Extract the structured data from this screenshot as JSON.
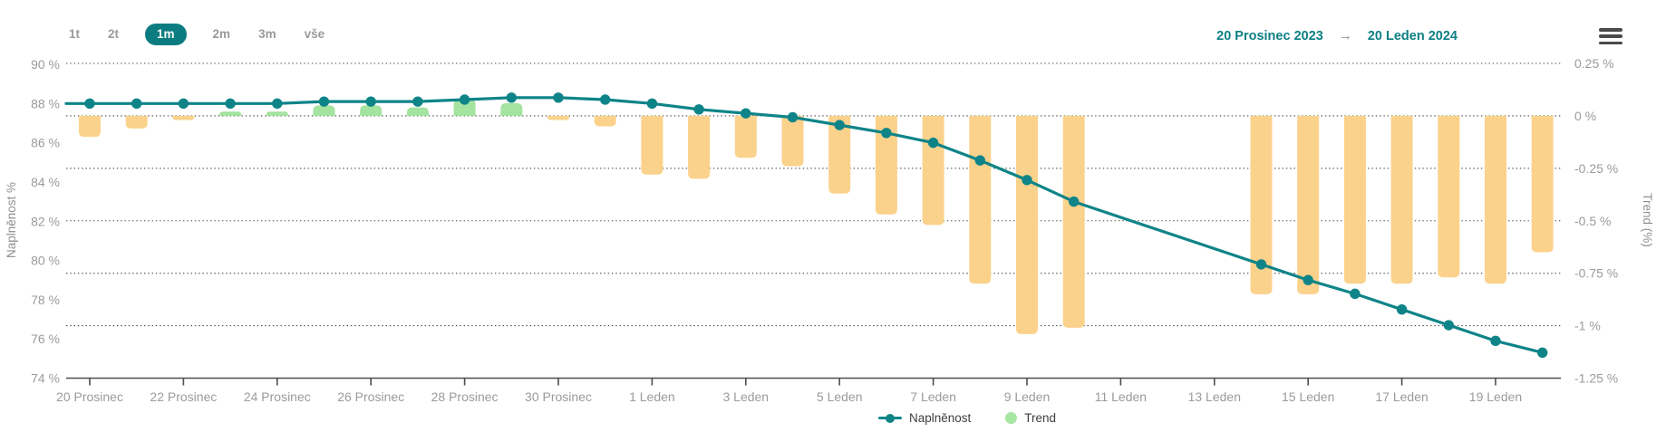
{
  "header": {
    "ranges": {
      "options": [
        "1t",
        "2t",
        "1m",
        "2m",
        "3m",
        "vše"
      ],
      "selected": "1m"
    },
    "date_range": {
      "from": "20 Prosinec 2023",
      "arrow": "→",
      "to": "20 Leden 2024"
    },
    "menu_icon": "hamburger-menu-icon"
  },
  "legend": {
    "items": [
      {
        "label": "Naplněnost",
        "marker": "line-dot",
        "color": "#0E8488"
      },
      {
        "label": "Trend",
        "marker": "circle",
        "color": "#A7E6A3"
      }
    ]
  },
  "colors": {
    "line_teal": "#0E8488",
    "pill_teal": "#0B7C80",
    "date_teal": "#0C7F83",
    "bar_negative_orange": "#FBD28C",
    "bar_positive_green": "#A4E3A0",
    "legend_green": "#A7E6A3",
    "axis_text_gray": "#9B9B9B",
    "axis_title_gray": "#8F8F8F",
    "grid_dot": "#484848",
    "axis_line": "#4D4D4D",
    "legend_text": "#3D3D3D"
  },
  "chart_data": {
    "type": "line+bar",
    "title": "",
    "grid": "dotted horizontal, aligned to right axis",
    "legend_position": "bottom",
    "categories": [
      "20 Prosinec",
      "21 Prosinec",
      "22 Prosinec",
      "23 Prosinec",
      "24 Prosinec",
      "25 Prosinec",
      "26 Prosinec",
      "27 Prosinec",
      "28 Prosinec",
      "29 Prosinec",
      "30 Prosinec",
      "31 Prosinec",
      "1 Leden",
      "2 Leden",
      "3 Leden",
      "4 Leden",
      "5 Leden",
      "6 Leden",
      "7 Leden",
      "8 Leden",
      "9 Leden",
      "10 Leden",
      "11 Leden",
      "12 Leden",
      "13 Leden",
      "14 Leden",
      "15 Leden",
      "16 Leden",
      "17 Leden",
      "18 Leden",
      "19 Leden",
      "20 Leden"
    ],
    "series": [
      {
        "name": "Naplněnost",
        "type": "line",
        "axis": "left",
        "unit": "%",
        "values": [
          88.0,
          88.0,
          88.0,
          88.0,
          88.0,
          88.1,
          88.1,
          88.1,
          88.2,
          88.3,
          88.3,
          88.2,
          88.0,
          87.7,
          87.5,
          87.3,
          86.9,
          86.5,
          86.0,
          85.1,
          84.1,
          83.0,
          null,
          null,
          null,
          79.8,
          79.0,
          78.3,
          77.5,
          76.7,
          75.9,
          75.3
        ]
      },
      {
        "name": "Trend",
        "type": "bar",
        "axis": "right",
        "unit": "%",
        "values": [
          -0.1,
          -0.06,
          -0.02,
          0.02,
          0.02,
          0.05,
          0.05,
          0.04,
          0.08,
          0.06,
          -0.02,
          -0.05,
          -0.28,
          -0.3,
          -0.2,
          -0.24,
          -0.37,
          -0.47,
          -0.52,
          -0.8,
          -1.04,
          -1.01,
          null,
          null,
          null,
          -0.85,
          -0.85,
          -0.8,
          -0.8,
          -0.77,
          -0.8,
          -0.65
        ]
      }
    ],
    "left_axis": {
      "title": "Naplněnost %",
      "min": 74,
      "max": 90,
      "tick_values": [
        90,
        88,
        86,
        84,
        82,
        80,
        78,
        76,
        74
      ],
      "tick_labels": [
        "90 %",
        "88 %",
        "86 %",
        "84 %",
        "82 %",
        "80 %",
        "78 %",
        "76 %",
        "74 %"
      ]
    },
    "right_axis": {
      "title": "Trend (%)",
      "min": -1.25,
      "max": 0.25,
      "tick_values": [
        0.25,
        0,
        -0.25,
        -0.5,
        -0.75,
        -1,
        -1.25
      ],
      "tick_labels": [
        "0.25 %",
        "0 %",
        "-0.25 %",
        "-0.5 %",
        "-0.75 %",
        "-1 %",
        "-1.25 %"
      ]
    },
    "x_axis": {
      "tick_indices": [
        0,
        2,
        4,
        6,
        8,
        10,
        12,
        14,
        16,
        18,
        20,
        22,
        24,
        26,
        28,
        30
      ],
      "tick_labels": [
        "20 Prosinec",
        "22 Prosinec",
        "24 Prosinec",
        "26 Prosinec",
        "28 Prosinec",
        "30 Prosinec",
        "1 Leden",
        "3 Leden",
        "5 Leden",
        "7 Leden",
        "9 Leden",
        "11 Leden",
        "13 Leden",
        "15 Leden",
        "17 Leden",
        "19 Leden"
      ]
    }
  }
}
